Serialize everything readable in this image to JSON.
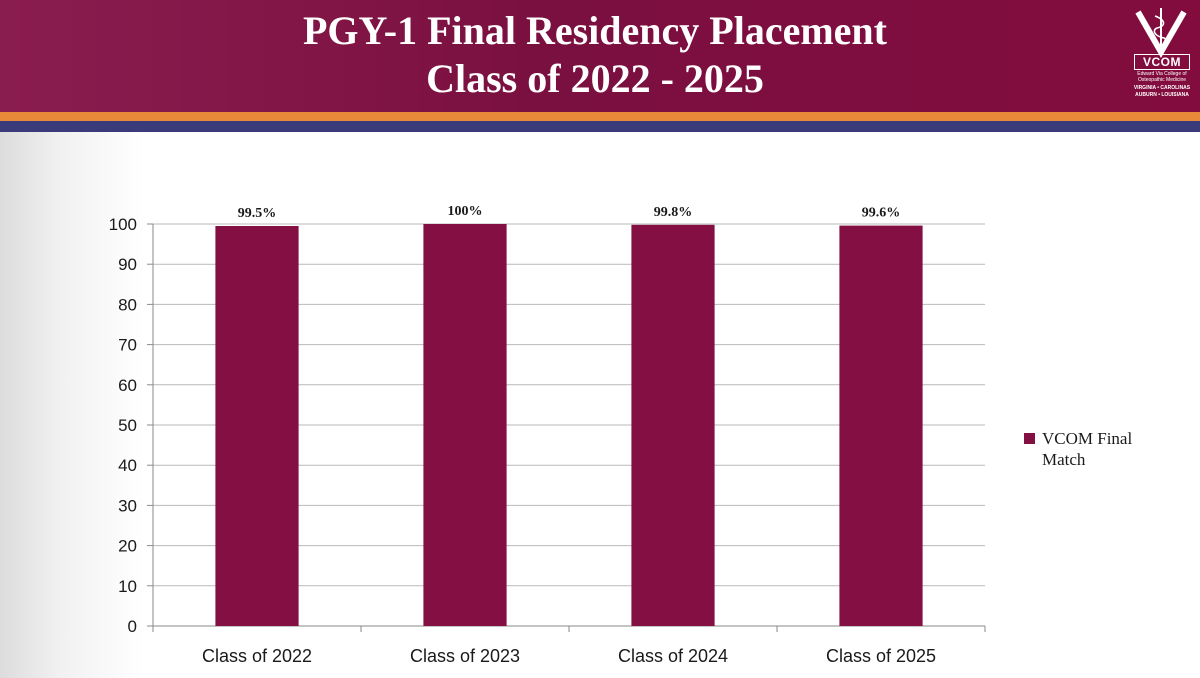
{
  "header": {
    "title_line1": "PGY-1 Final Residency Placement",
    "title_line2": "Class of 2022 - 2025"
  },
  "logo": {
    "wordmark": "VCOM",
    "line1": "Edward Via College of",
    "line2": "Osteopathic Medicine",
    "line3": "VIRGINIA • CAROLINAS",
    "line4": "AUBURN • LOUISIANA",
    "icon": "caduceus-icon"
  },
  "colors": {
    "header": "#7a1040",
    "bar": "#841043",
    "stripe_orange": "#e8893a",
    "stripe_navy": "#3a3b7a"
  },
  "chart_data": {
    "type": "bar",
    "categories": [
      "Class of 2022",
      "Class of 2023",
      "Class of 2024",
      "Class of 2025"
    ],
    "series": [
      {
        "name": "VCOM Final Match",
        "values": [
          99.5,
          100,
          99.8,
          99.6
        ]
      }
    ],
    "data_labels": [
      "99.5%",
      "100%",
      "99.8%",
      "99.6%"
    ],
    "ylim": [
      0,
      100
    ],
    "yticks": [
      0,
      10,
      20,
      30,
      40,
      50,
      60,
      70,
      80,
      90,
      100
    ],
    "grid": true,
    "legend": "right",
    "title": "",
    "xlabel": "",
    "ylabel": ""
  }
}
